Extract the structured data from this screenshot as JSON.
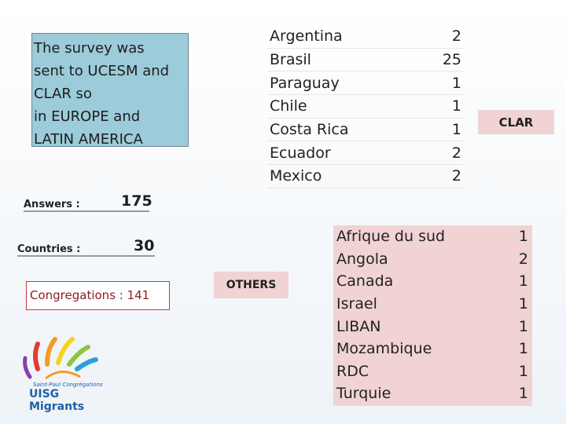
{
  "intro": {
    "lines": [
      "The survey was",
      "sent to UCESM and",
      "CLAR so",
      "in EUROPE and",
      "LATIN AMERICA"
    ]
  },
  "stats": {
    "answers_label": "Answers :",
    "answers_value": "175",
    "countries_label": "Countries :",
    "countries_value": "30",
    "congregations": "Congregations : 141"
  },
  "clar": {
    "badge": "CLAR",
    "rows": [
      {
        "country": "Argentina",
        "count": "2"
      },
      {
        "country": "Brasil",
        "count": "25"
      },
      {
        "country": "Paraguay",
        "count": "1"
      },
      {
        "country": "Chile",
        "count": "1"
      },
      {
        "country": "Costa Rica",
        "count": "1"
      },
      {
        "country": "Ecuador",
        "count": "2"
      },
      {
        "country": "Mexico",
        "count": "2"
      }
    ]
  },
  "others": {
    "badge": "OTHERS",
    "rows": [
      {
        "country": "Afrique du sud",
        "count": "1"
      },
      {
        "country": "Angola",
        "count": "2"
      },
      {
        "country": "Canada",
        "count": "1"
      },
      {
        "country": "Israel",
        "count": "1"
      },
      {
        "country": "LIBAN",
        "count": "1"
      },
      {
        "country": "Mozambique",
        "count": "1"
      },
      {
        "country": "RDC",
        "count": "1"
      },
      {
        "country": "Turquie",
        "count": "1"
      }
    ]
  },
  "logo": {
    "small_text": "Saint-Paul Congrégations",
    "brand_prefix": "UISG",
    "brand_suffix": "Migrants",
    "colors": [
      "#e23d2f",
      "#f39c1f",
      "#f7d21e",
      "#8cc63f",
      "#2aa0d8",
      "#1f5fa8",
      "#8a3ea8"
    ]
  }
}
